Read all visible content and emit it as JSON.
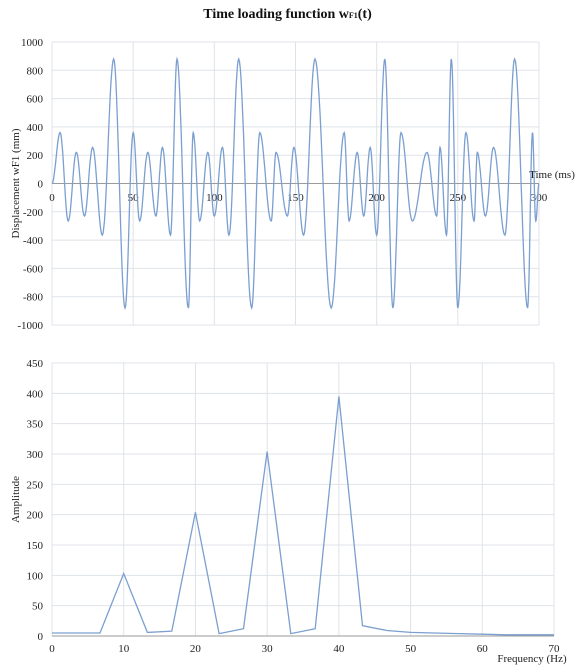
{
  "title": "Time loading function w",
  "title_sub": "F1",
  "title_tail": "(t)",
  "colors": {
    "line": "#7b9fd0",
    "grid": "#dfe3e8",
    "axis": "#9a9a9a",
    "text": "#222222"
  },
  "chart_data": [
    {
      "type": "line",
      "title": "Time loading function wF1(t)",
      "xlabel": "Time (ms)",
      "ylabel": "Displacement wF1 (mm)",
      "xlim": [
        0,
        300
      ],
      "ylim": [
        -1000,
        1000
      ],
      "x_ticks": [
        0,
        50,
        100,
        150,
        200,
        250,
        300
      ],
      "y_ticks": [
        -1000,
        -800,
        -600,
        -400,
        -200,
        0,
        200,
        400,
        600,
        800,
        1000
      ],
      "grid": true,
      "series": [
        {
          "x": [
            0,
            5,
            10,
            15,
            20,
            25,
            30,
            35,
            40,
            45,
            50,
            55,
            60,
            65,
            70,
            75,
            80,
            85,
            90,
            95,
            100,
            105,
            110,
            115,
            120,
            125,
            130,
            135,
            140,
            145,
            150,
            155,
            160,
            165,
            170,
            175,
            180,
            185,
            190,
            195,
            200,
            205,
            210,
            215,
            220,
            225,
            230,
            235,
            240,
            245,
            250,
            255,
            260,
            265,
            270,
            275,
            280,
            285,
            290,
            295,
            300
          ],
          "values": [
            0,
            360,
            -260,
            220,
            -230,
            255,
            -365,
            880,
            -880,
            360,
            -260,
            220,
            -230,
            255,
            -365,
            880,
            -880,
            360,
            -260,
            220,
            -230,
            255,
            -365,
            880,
            -880,
            360,
            -260,
            220,
            -230,
            255,
            -365,
            880,
            -880,
            360,
            -260,
            220,
            -230,
            255,
            -365,
            880,
            -880,
            360,
            -260,
            220,
            -230,
            255,
            -365,
            880,
            -880,
            360,
            -260,
            220,
            -230,
            255,
            -365,
            880,
            -880,
            360,
            -260,
            220,
            0
          ],
          "extrema_x": [
            0,
            5,
            10,
            15,
            20,
            25,
            31,
            38,
            45,
            50,
            54,
            59,
            64,
            68,
            73,
            77,
            84,
            87,
            91,
            96,
            100,
            105,
            109,
            115,
            123,
            128,
            135,
            138,
            145,
            149,
            155,
            162,
            172,
            180,
            183,
            188,
            192,
            196,
            200,
            205,
            210,
            215,
            222,
            231,
            237,
            239,
            243,
            246,
            250,
            255,
            260,
            262,
            267,
            272,
            279,
            285,
            293,
            296,
            298,
            300
          ],
          "extrema_y": [
            0,
            360,
            -265,
            220,
            -230,
            255,
            -365,
            880,
            -880,
            360,
            -265,
            220,
            -230,
            255,
            -365,
            880,
            -880,
            360,
            -265,
            220,
            -230,
            255,
            -365,
            880,
            -880,
            360,
            -265,
            220,
            -230,
            255,
            -365,
            880,
            -880,
            360,
            -265,
            220,
            -230,
            255,
            -365,
            880,
            -880,
            360,
            -265,
            220,
            -230,
            255,
            -365,
            880,
            -880,
            360,
            -265,
            220,
            -230,
            255,
            -365,
            880,
            -880,
            360,
            -265,
            0
          ]
        }
      ]
    },
    {
      "type": "line",
      "title": "",
      "xlabel": "Frequency (Hz)",
      "ylabel": "Amplitude",
      "xlim": [
        0,
        70
      ],
      "ylim": [
        0,
        450
      ],
      "x_ticks": [
        0,
        10,
        20,
        30,
        40,
        50,
        60,
        70
      ],
      "y_ticks": [
        0,
        50,
        100,
        150,
        200,
        250,
        300,
        350,
        400,
        450
      ],
      "grid": true,
      "series": [
        {
          "x": [
            0,
            6.7,
            10,
            13.3,
            16.7,
            20,
            23.3,
            26.7,
            30,
            33.3,
            36.7,
            40,
            43.3,
            46.7,
            50,
            53.3,
            56.7,
            60,
            63.3,
            66.7,
            70
          ],
          "values": [
            5,
            5,
            103,
            6,
            8,
            204,
            4,
            12,
            304,
            4,
            12,
            395,
            17,
            9,
            6,
            5,
            4,
            3,
            2,
            2,
            2
          ]
        }
      ]
    }
  ]
}
